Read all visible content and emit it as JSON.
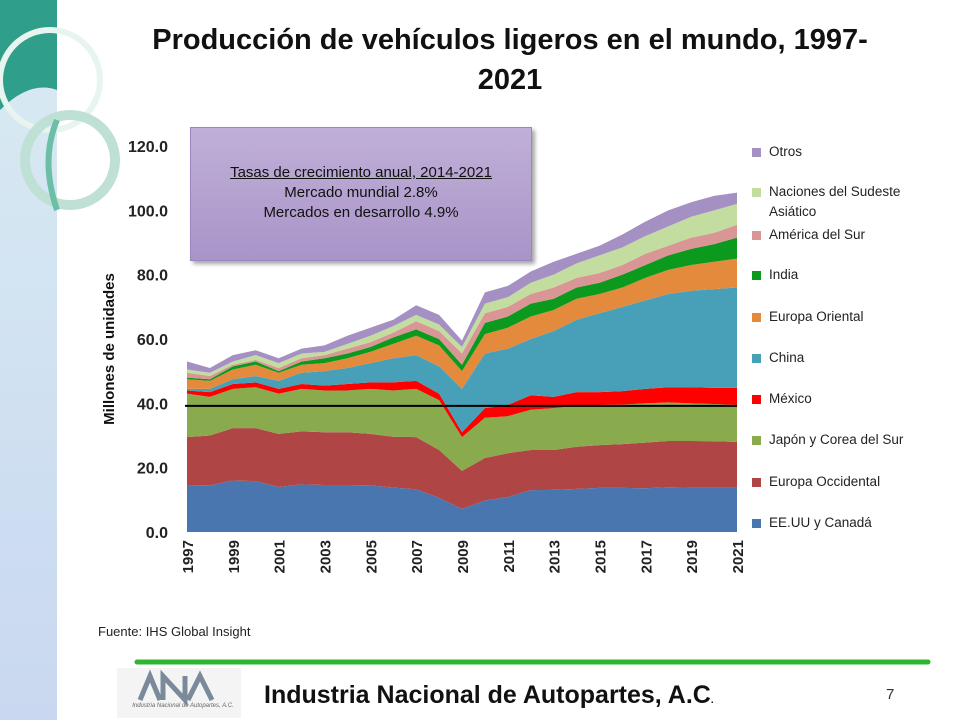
{
  "chart_data": {
    "type": "stacked_area",
    "title": "Producción de vehículos ligeros en el mundo, 1997-2021",
    "y_label": "Millones de unidades",
    "annotations": [
      "Tasas de crecimiento anual, 2014-2021",
      "Mercado mundial 2.8%",
      "Mercados en desarrollo 4.9%"
    ],
    "reference_line": 39.2,
    "categories": [
      "1997",
      null,
      "1999",
      null,
      "2001",
      null,
      "2003",
      null,
      "2005",
      null,
      "2007",
      null,
      "2009",
      null,
      "2011",
      null,
      "2013",
      null,
      "2015",
      null,
      "2017",
      null,
      "2019",
      null,
      "2021"
    ],
    "ylim": [
      0,
      120
    ],
    "yticks": [
      {
        "value": 0,
        "label": "0.0"
      },
      {
        "value": 20,
        "label": "20.0"
      },
      {
        "value": 40,
        "label": "40.0"
      },
      {
        "value": 60,
        "label": "60.0"
      },
      {
        "value": 80,
        "label": "80.0"
      },
      {
        "value": 100,
        "label": "100.0"
      },
      {
        "value": 120,
        "label": "120.0"
      }
    ],
    "series": [
      {
        "name": "EE.UU y Canadá",
        "color": "#4a76b0",
        "values": [
          14.6,
          14.5,
          16,
          15.8,
          14,
          14.8,
          14.6,
          14.6,
          14.5,
          13.8,
          13.3,
          10.6,
          7.2,
          9.8,
          10.9,
          13,
          13.1,
          13.4,
          13.7,
          13.7,
          13.6,
          13.9,
          13.8,
          13.8,
          13.8
        ]
      },
      {
        "name": "Europa Occidental",
        "color": "#b04545",
        "values": [
          14.9,
          15.5,
          16.3,
          16.5,
          16.5,
          16.5,
          16.4,
          16.4,
          16,
          15.8,
          16.2,
          14.9,
          11.8,
          13.2,
          13.6,
          12.5,
          12.4,
          13.1,
          13.3,
          13.6,
          14.2,
          14.4,
          14.5,
          14.4,
          14.2
        ]
      },
      {
        "name": "Japón y Corea del Sur",
        "color": "#8aaa4e",
        "values": [
          13.5,
          12,
          12.2,
          12.7,
          12.5,
          13.2,
          13,
          13,
          14,
          14.4,
          15,
          15.5,
          10.5,
          12.5,
          11.5,
          12.5,
          13,
          12.7,
          12.5,
          12.3,
          12.2,
          12,
          11.7,
          11.6,
          11.5
        ]
      },
      {
        "name": "México",
        "color": "#ff0000",
        "values": [
          1,
          1.5,
          1.5,
          1.5,
          1.5,
          1.5,
          1.5,
          2,
          2,
          2.5,
          2.5,
          2,
          1.5,
          3,
          3.5,
          4.5,
          3.5,
          4.3,
          4,
          4.2,
          4.5,
          4.7,
          5,
          5,
          5.3
        ]
      },
      {
        "name": "China",
        "color": "#47a0b8",
        "values": [
          0.5,
          1,
          1.5,
          2,
          2.5,
          3.5,
          4.5,
          5,
          6,
          7.5,
          8,
          8.5,
          13.5,
          17,
          17.5,
          17.5,
          20.5,
          22.5,
          24.5,
          26.2,
          27.5,
          29,
          30,
          30.7,
          31.2
        ]
      },
      {
        "name": "Europa Oriental",
        "color": "#e38a3c",
        "values": [
          3,
          2.5,
          3,
          3.5,
          2.5,
          2.5,
          2.5,
          3,
          3.5,
          4.5,
          6,
          6.5,
          5.5,
          6,
          6.5,
          7,
          6.5,
          6.5,
          6,
          6,
          7,
          7.5,
          8,
          8.5,
          9
        ]
      },
      {
        "name": "India",
        "color": "#0c9a1e",
        "values": [
          0.5,
          0.5,
          1,
          1,
          0.5,
          1,
          1.5,
          1.5,
          1.5,
          2,
          2,
          2,
          2,
          3.5,
          3.5,
          4,
          3.5,
          3.5,
          3.5,
          4,
          4,
          4.5,
          5,
          5.5,
          6.5
        ]
      },
      {
        "name": "América del Sur",
        "color": "#d99694",
        "values": [
          1.5,
          1,
          0.5,
          0.5,
          1,
          1,
          1,
          1.5,
          1.5,
          1.5,
          2.5,
          2.5,
          3.5,
          3,
          3,
          3,
          3.5,
          3,
          3,
          3,
          3.5,
          3,
          3.5,
          3.5,
          4
        ]
      },
      {
        "name": "Naciones del Sudeste Asiático",
        "color": "#c3dda0",
        "values": [
          1,
          1,
          1,
          1.5,
          1.5,
          1.5,
          1,
          1.5,
          2,
          2,
          2,
          2,
          2,
          3,
          3,
          3.5,
          4,
          4.5,
          5.5,
          5.5,
          5.5,
          6,
          6.5,
          7,
          6.5
        ]
      },
      {
        "name": "Otros",
        "color": "#a490c2",
        "values": [
          2.5,
          1.5,
          2,
          1.5,
          1.5,
          1.5,
          2,
          2.5,
          2.5,
          2,
          3,
          3,
          2,
          3.5,
          3.5,
          3.5,
          4,
          3,
          3,
          4,
          4.5,
          5,
          4.5,
          4.5,
          3.5
        ]
      }
    ]
  },
  "slide": {
    "source": "Fuente:  IHS Global Insight",
    "footer": "Industria Nacional de  Autopartes, A.C",
    "footer_dot": ".",
    "page_number": "7",
    "logo_text": "Industria Nacional de Autopartes, A.C."
  }
}
